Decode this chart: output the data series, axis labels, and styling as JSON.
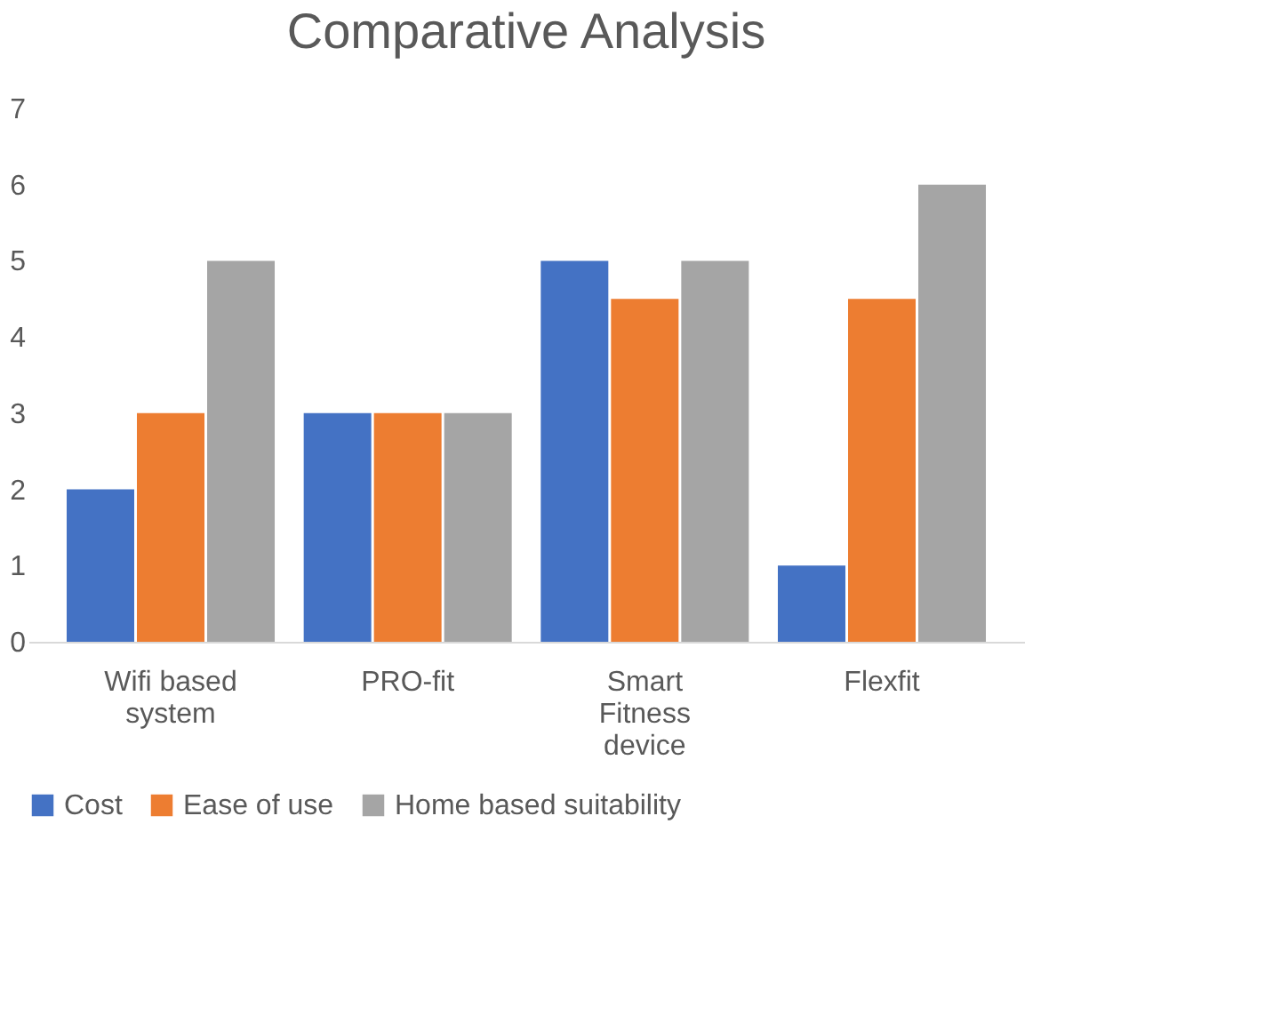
{
  "chart_data": {
    "type": "bar",
    "title": "Comparative Analysis",
    "categories": [
      "Wifi based system",
      "PRO-fit",
      "Smart Fitness device",
      "Flexfit"
    ],
    "series": [
      {
        "name": "Cost",
        "color": "#4472c4",
        "values": [
          2,
          3,
          5,
          1
        ]
      },
      {
        "name": "Ease of use",
        "color": "#ed7d31",
        "values": [
          3,
          3,
          4.5,
          4.5
        ]
      },
      {
        "name": "Home based suitability",
        "color": "#a5a5a5",
        "values": [
          5,
          3,
          5,
          6
        ]
      }
    ],
    "ylim": [
      0,
      7
    ],
    "yticks": [
      0,
      1,
      2,
      3,
      4,
      5,
      6,
      7
    ],
    "grid": false,
    "legend": "bottom"
  }
}
